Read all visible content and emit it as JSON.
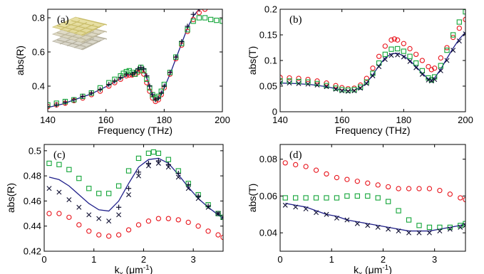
{
  "chart_data": [
    {
      "panel": "(a)",
      "type": "scatter",
      "xlabel": "Frequency (THz)",
      "ylabel": "abs(R)",
      "xlim": [
        140,
        200
      ],
      "ylim": [
        0.25,
        0.85
      ],
      "xticks": [
        140,
        160,
        180,
        200
      ],
      "yticks": [
        0.4,
        0.6,
        0.8
      ],
      "xtick_labels": [
        "140",
        "160",
        "180",
        "200"
      ],
      "ytick_labels": [
        "0.4",
        "0.6",
        "0.8"
      ],
      "inset": "metamaterial-structure",
      "series": [
        {
          "marker": "circle",
          "color": "#e8141c",
          "x": [
            140,
            143,
            146,
            149,
            152,
            155,
            158,
            161,
            163,
            165,
            167,
            168,
            169,
            170,
            171,
            172,
            173,
            174,
            175,
            176,
            177,
            178,
            179,
            180,
            182,
            184,
            186,
            188,
            190,
            192,
            194
          ],
          "y": [
            0.28,
            0.29,
            0.3,
            0.315,
            0.33,
            0.35,
            0.37,
            0.4,
            0.42,
            0.44,
            0.46,
            0.465,
            0.465,
            0.47,
            0.48,
            0.49,
            0.47,
            0.42,
            0.37,
            0.33,
            0.31,
            0.32,
            0.35,
            0.39,
            0.47,
            0.56,
            0.64,
            0.72,
            0.79,
            0.83,
            0.85
          ]
        },
        {
          "marker": "square",
          "color": "#13a538",
          "x": [
            140,
            143,
            146,
            149,
            152,
            155,
            158,
            161,
            163,
            165,
            166,
            167,
            168,
            169,
            170,
            171,
            172,
            173,
            174,
            175,
            176,
            177,
            178,
            179,
            180,
            182,
            184,
            186,
            188,
            190,
            192,
            194,
            196,
            198,
            200
          ],
          "y": [
            0.29,
            0.3,
            0.31,
            0.32,
            0.34,
            0.36,
            0.39,
            0.42,
            0.44,
            0.46,
            0.475,
            0.485,
            0.49,
            0.48,
            0.47,
            0.49,
            0.51,
            0.49,
            0.44,
            0.39,
            0.35,
            0.33,
            0.34,
            0.37,
            0.41,
            0.48,
            0.57,
            0.65,
            0.73,
            0.78,
            0.8,
            0.8,
            0.79,
            0.785,
            0.78
          ]
        },
        {
          "marker": "plus",
          "color": "#0d0d30",
          "x": [
            140,
            143,
            146,
            149,
            152,
            155,
            158,
            161,
            163,
            165,
            167,
            169,
            170,
            171,
            172,
            173,
            174,
            175,
            176,
            177,
            178,
            179,
            180,
            182,
            184,
            186,
            188,
            190,
            192
          ],
          "y": [
            0.28,
            0.29,
            0.305,
            0.32,
            0.34,
            0.36,
            0.38,
            0.41,
            0.43,
            0.45,
            0.47,
            0.47,
            0.48,
            0.5,
            0.51,
            0.5,
            0.46,
            0.4,
            0.35,
            0.32,
            0.33,
            0.36,
            0.4,
            0.48,
            0.57,
            0.66,
            0.75,
            0.82,
            0.85
          ]
        },
        {
          "marker": "line",
          "color": "#1f1f8a",
          "x": [
            140,
            145,
            150,
            155,
            158,
            161,
            164,
            167,
            169,
            170,
            171,
            172,
            173,
            174,
            175,
            176,
            177,
            178,
            179,
            180,
            182,
            184,
            186,
            188,
            190,
            192
          ],
          "y": [
            0.275,
            0.295,
            0.325,
            0.355,
            0.38,
            0.405,
            0.435,
            0.46,
            0.47,
            0.475,
            0.49,
            0.5,
            0.49,
            0.45,
            0.39,
            0.34,
            0.315,
            0.32,
            0.35,
            0.39,
            0.47,
            0.56,
            0.65,
            0.74,
            0.81,
            0.85
          ]
        }
      ]
    },
    {
      "panel": "(b)",
      "type": "scatter",
      "xlabel": "Frequency (THz)",
      "ylabel": "abs(T)",
      "xlim": [
        140,
        200
      ],
      "ylim": [
        0,
        0.2
      ],
      "xticks": [
        140,
        160,
        180,
        200
      ],
      "yticks": [
        0,
        0.05,
        0.1,
        0.15,
        0.2
      ],
      "xtick_labels": [
        "140",
        "160",
        "180",
        "200"
      ],
      "ytick_labels": [
        "0",
        "0.05",
        "0.1",
        "0.15",
        "0.2"
      ],
      "series": [
        {
          "marker": "circle",
          "color": "#e8141c",
          "x": [
            140,
            143,
            146,
            149,
            152,
            155,
            158,
            160,
            162,
            164,
            166,
            168,
            170,
            172,
            174,
            176,
            177,
            178,
            180,
            182,
            184,
            186,
            188,
            189,
            190,
            192,
            194,
            196,
            198,
            200
          ],
          "y": [
            0.067,
            0.066,
            0.065,
            0.063,
            0.06,
            0.056,
            0.051,
            0.047,
            0.045,
            0.046,
            0.052,
            0.065,
            0.085,
            0.108,
            0.128,
            0.14,
            0.142,
            0.14,
            0.133,
            0.123,
            0.112,
            0.1,
            0.088,
            0.082,
            0.085,
            0.105,
            0.125,
            0.145,
            0.163,
            0.18
          ]
        },
        {
          "marker": "square",
          "color": "#13a538",
          "x": [
            140,
            143,
            146,
            149,
            152,
            155,
            158,
            160,
            162,
            164,
            166,
            168,
            170,
            172,
            174,
            176,
            178,
            180,
            182,
            184,
            186,
            188,
            189,
            190,
            192,
            194,
            196,
            198,
            200
          ],
          "y": [
            0.06,
            0.06,
            0.059,
            0.058,
            0.055,
            0.051,
            0.046,
            0.043,
            0.042,
            0.043,
            0.048,
            0.058,
            0.075,
            0.095,
            0.112,
            0.122,
            0.123,
            0.118,
            0.108,
            0.095,
            0.08,
            0.066,
            0.062,
            0.068,
            0.09,
            0.12,
            0.15,
            0.175,
            0.195
          ]
        },
        {
          "marker": "cross",
          "color": "#0d0d30",
          "x": [
            140,
            143,
            146,
            149,
            152,
            155,
            158,
            160,
            162,
            164,
            166,
            168,
            170,
            172,
            174,
            176,
            178,
            180,
            182,
            184,
            186,
            188,
            189,
            190,
            192,
            194,
            196,
            198,
            200
          ],
          "y": [
            0.056,
            0.056,
            0.055,
            0.054,
            0.052,
            0.049,
            0.044,
            0.041,
            0.04,
            0.041,
            0.046,
            0.055,
            0.07,
            0.088,
            0.102,
            0.11,
            0.111,
            0.107,
            0.098,
            0.086,
            0.073,
            0.062,
            0.06,
            0.063,
            0.08,
            0.1,
            0.12,
            0.138,
            0.152
          ]
        },
        {
          "marker": "line",
          "color": "#1f1f8a",
          "x": [
            140,
            145,
            150,
            155,
            158,
            160,
            162,
            164,
            166,
            168,
            170,
            172,
            174,
            176,
            178,
            180,
            182,
            184,
            186,
            188,
            189,
            190,
            192,
            194,
            196,
            198,
            200
          ],
          "y": [
            0.056,
            0.055,
            0.053,
            0.049,
            0.045,
            0.042,
            0.041,
            0.042,
            0.047,
            0.056,
            0.072,
            0.09,
            0.105,
            0.113,
            0.114,
            0.109,
            0.1,
            0.088,
            0.075,
            0.064,
            0.062,
            0.066,
            0.083,
            0.104,
            0.124,
            0.142,
            0.155
          ]
        }
      ]
    },
    {
      "panel": "(c)",
      "type": "scatter",
      "xlabel": "k",
      "xlabel_sub": "x",
      "xlabel_unit": "(μm",
      "xlabel_sup": "-1",
      "xlabel_close": ")",
      "ylabel": "abs(R)",
      "xlim": [
        0,
        3.6
      ],
      "ylim": [
        0.42,
        0.505
      ],
      "xticks": [
        0,
        1,
        2,
        3
      ],
      "yticks": [
        0.42,
        0.44,
        0.46,
        0.48,
        0.5
      ],
      "xtick_labels": [
        "0",
        "1",
        "2",
        "3"
      ],
      "ytick_labels": [
        "0.42",
        "0.44",
        "0.46",
        "0.48",
        "0.5"
      ],
      "series": [
        {
          "marker": "square",
          "color": "#13a538",
          "x": [
            0.1,
            0.3,
            0.5,
            0.7,
            0.9,
            1.1,
            1.3,
            1.5,
            1.7,
            1.9,
            2.1,
            2.2,
            2.3,
            2.5,
            2.7,
            2.9,
            3.1,
            3.3,
            3.5,
            3.6
          ],
          "y": [
            0.49,
            0.489,
            0.485,
            0.478,
            0.47,
            0.466,
            0.466,
            0.472,
            0.484,
            0.494,
            0.498,
            0.499,
            0.498,
            0.493,
            0.484,
            0.474,
            0.465,
            0.457,
            0.45,
            0.447
          ]
        },
        {
          "marker": "cross",
          "color": "#0d0d30",
          "x": [
            0.1,
            0.3,
            0.5,
            0.7,
            0.9,
            1.1,
            1.3,
            1.5,
            1.7,
            1.9,
            2.1,
            2.3,
            2.5,
            2.7,
            2.9,
            3.1,
            3.3,
            3.5,
            3.6
          ],
          "y": [
            0.47,
            0.467,
            0.461,
            0.455,
            0.449,
            0.446,
            0.444,
            0.449,
            0.465,
            0.48,
            0.488,
            0.49,
            0.487,
            0.479,
            0.47,
            0.462,
            0.455,
            0.45,
            0.447
          ]
        },
        {
          "marker": "plus",
          "color": "#0d0d30",
          "x": [
            1.5,
            1.7,
            1.9,
            2.1,
            2.3,
            2.5,
            2.7,
            2.9,
            3.1,
            3.3,
            3.5
          ],
          "y": [
            0.455,
            0.47,
            0.483,
            0.49,
            0.492,
            0.489,
            0.482,
            0.473,
            0.464,
            0.456,
            0.45
          ]
        },
        {
          "marker": "circle",
          "color": "#e8141c",
          "x": [
            0.1,
            0.3,
            0.5,
            0.7,
            0.9,
            1.1,
            1.3,
            1.5,
            1.7,
            1.9,
            2.1,
            2.3,
            2.5,
            2.7,
            2.9,
            3.1,
            3.3,
            3.5,
            3.6
          ],
          "y": [
            0.45,
            0.45,
            0.447,
            0.441,
            0.436,
            0.433,
            0.432,
            0.433,
            0.437,
            0.441,
            0.444,
            0.446,
            0.446,
            0.445,
            0.443,
            0.44,
            0.436,
            0.433,
            0.431
          ]
        },
        {
          "marker": "line",
          "color": "#1f1f8a",
          "x": [
            0.1,
            0.3,
            0.5,
            0.7,
            0.9,
            1.1,
            1.3,
            1.5,
            1.7,
            1.9,
            2.1,
            2.3,
            2.5,
            2.7,
            2.9,
            3.1,
            3.3,
            3.5,
            3.6
          ],
          "y": [
            0.479,
            0.477,
            0.472,
            0.465,
            0.458,
            0.453,
            0.452,
            0.46,
            0.474,
            0.487,
            0.493,
            0.494,
            0.49,
            0.481,
            0.471,
            0.462,
            0.455,
            0.449,
            0.446
          ]
        }
      ]
    },
    {
      "panel": "(d)",
      "type": "scatter",
      "xlabel": "k",
      "xlabel_sub": "x",
      "xlabel_unit": "(μm",
      "xlabel_sup": "-1",
      "xlabel_close": ")",
      "ylabel": "abs(T)",
      "xlim": [
        0,
        3.6
      ],
      "ylim": [
        0.03,
        0.088
      ],
      "xticks": [
        0,
        1,
        2,
        3
      ],
      "yticks": [
        0.04,
        0.06,
        0.08
      ],
      "xtick_labels": [
        "0",
        "1",
        "2",
        "3"
      ],
      "ytick_labels": [
        "0.04",
        "0.06",
        "0.08"
      ],
      "series": [
        {
          "marker": "circle",
          "color": "#e8141c",
          "x": [
            0.1,
            0.3,
            0.5,
            0.7,
            0.9,
            1.1,
            1.3,
            1.5,
            1.7,
            1.9,
            2.1,
            2.3,
            2.5,
            2.7,
            2.9,
            3.1,
            3.3,
            3.5,
            3.6
          ],
          "y": [
            0.078,
            0.077,
            0.076,
            0.074,
            0.072,
            0.07,
            0.069,
            0.068,
            0.067,
            0.066,
            0.065,
            0.064,
            0.064,
            0.064,
            0.064,
            0.063,
            0.061,
            0.059,
            0.058
          ]
        },
        {
          "marker": "square",
          "color": "#13a538",
          "x": [
            0.1,
            0.3,
            0.5,
            0.7,
            0.9,
            1.1,
            1.3,
            1.5,
            1.7,
            1.9,
            2.1,
            2.3,
            2.5,
            2.7,
            2.9,
            3.1,
            3.3,
            3.5,
            3.6
          ],
          "y": [
            0.059,
            0.059,
            0.059,
            0.059,
            0.059,
            0.059,
            0.06,
            0.06,
            0.06,
            0.059,
            0.057,
            0.052,
            0.047,
            0.044,
            0.043,
            0.043,
            0.043,
            0.044,
            0.045
          ]
        },
        {
          "marker": "cross",
          "color": "#0d0d30",
          "x": [
            0.1,
            0.3,
            0.5,
            0.7,
            0.9,
            1.1,
            1.3,
            1.5,
            1.7,
            1.9,
            2.1,
            2.3,
            2.5,
            2.7,
            2.9,
            3.1,
            3.3,
            3.5,
            3.6
          ],
          "y": [
            0.055,
            0.054,
            0.053,
            0.051,
            0.05,
            0.048,
            0.047,
            0.045,
            0.044,
            0.043,
            0.042,
            0.041,
            0.04,
            0.04,
            0.04,
            0.041,
            0.042,
            0.043,
            0.044
          ]
        },
        {
          "marker": "line",
          "color": "#1f1f8a",
          "x": [
            0.1,
            0.3,
            0.5,
            0.7,
            0.9,
            1.1,
            1.3,
            1.5,
            1.7,
            1.9,
            2.1,
            2.3,
            2.5,
            2.7,
            2.9,
            3.1,
            3.3,
            3.5,
            3.6
          ],
          "y": [
            0.056,
            0.055,
            0.054,
            0.052,
            0.05,
            0.049,
            0.047,
            0.046,
            0.045,
            0.044,
            0.043,
            0.042,
            0.041,
            0.041,
            0.041,
            0.042,
            0.043,
            0.044,
            0.045
          ]
        }
      ]
    }
  ]
}
